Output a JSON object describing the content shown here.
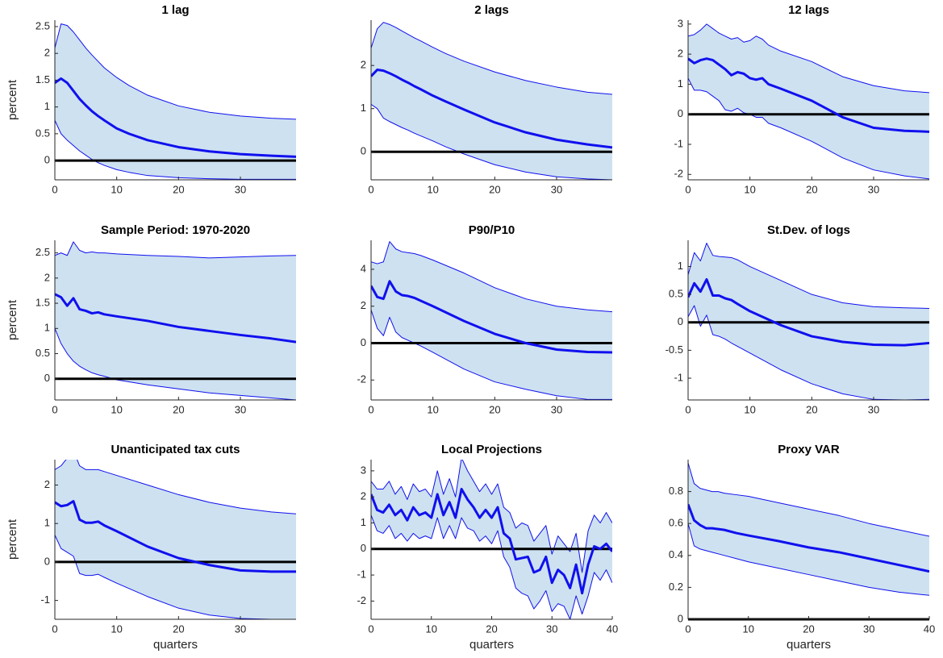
{
  "chart_data": [
    {
      "type": "line",
      "title": "1 lag",
      "ylabel": "percent",
      "x": [
        0,
        1,
        2,
        3,
        4,
        5,
        6,
        7,
        8,
        10,
        12,
        15,
        20,
        25,
        30,
        35,
        39
      ],
      "series": [
        {
          "color": "#1010ee",
          "values": [
            1.45,
            1.53,
            1.45,
            1.3,
            1.15,
            1.03,
            0.92,
            0.83,
            0.75,
            0.6,
            0.5,
            0.38,
            0.25,
            0.17,
            0.12,
            0.09,
            0.07
          ]
        }
      ],
      "band": {
        "color": "#cde1f1",
        "line_color": "#1010ee",
        "upper": [
          2.1,
          2.55,
          2.52,
          2.4,
          2.25,
          2.1,
          1.97,
          1.85,
          1.73,
          1.55,
          1.4,
          1.22,
          1.02,
          0.9,
          0.83,
          0.79,
          0.77
        ],
        "lower": [
          0.75,
          0.5,
          0.38,
          0.28,
          0.18,
          0.1,
          0.02,
          -0.04,
          -0.09,
          -0.17,
          -0.22,
          -0.28,
          -0.32,
          -0.34,
          -0.35,
          -0.35,
          -0.35
        ]
      },
      "hline": 0,
      "xlim": [
        0,
        39
      ],
      "xticks": [
        0,
        10,
        20,
        30
      ],
      "ylim": [
        -0.36,
        2.62
      ],
      "yticks": [
        0,
        0.5,
        1,
        1.5,
        2,
        2.5
      ]
    },
    {
      "type": "line",
      "title": "2 lags",
      "x": [
        0,
        1,
        2,
        3,
        4,
        5,
        6,
        7,
        8,
        10,
        12,
        15,
        20,
        25,
        30,
        35,
        39
      ],
      "series": [
        {
          "color": "#1010ee",
          "values": [
            1.75,
            1.9,
            1.88,
            1.82,
            1.75,
            1.67,
            1.6,
            1.52,
            1.45,
            1.3,
            1.17,
            0.98,
            0.68,
            0.45,
            0.28,
            0.17,
            0.1
          ]
        }
      ],
      "band": {
        "color": "#cde1f1",
        "line_color": "#1010ee",
        "upper": [
          2.4,
          2.85,
          3.0,
          2.95,
          2.88,
          2.8,
          2.72,
          2.64,
          2.57,
          2.42,
          2.28,
          2.1,
          1.85,
          1.65,
          1.5,
          1.38,
          1.33
        ],
        "lower": [
          1.1,
          1.0,
          0.78,
          0.7,
          0.63,
          0.56,
          0.5,
          0.43,
          0.37,
          0.25,
          0.12,
          -0.05,
          -0.3,
          -0.47,
          -0.58,
          -0.63,
          -0.65
        ]
      },
      "hline": 0,
      "xlim": [
        0,
        39
      ],
      "xticks": [
        0,
        10,
        20,
        30
      ],
      "ylim": [
        -0.65,
        3.05
      ],
      "yticks": [
        0,
        1,
        2
      ]
    },
    {
      "type": "line",
      "title": "12 lags",
      "x": [
        0,
        1,
        2,
        3,
        4,
        5,
        6,
        7,
        8,
        9,
        10,
        11,
        12,
        13,
        15,
        20,
        25,
        30,
        35,
        39
      ],
      "series": [
        {
          "color": "#1010ee",
          "values": [
            1.85,
            1.7,
            1.8,
            1.85,
            1.8,
            1.65,
            1.5,
            1.3,
            1.4,
            1.35,
            1.2,
            1.15,
            1.2,
            1.0,
            0.85,
            0.45,
            -0.1,
            -0.45,
            -0.55,
            -0.58
          ]
        }
      ],
      "band": {
        "color": "#cde1f1",
        "line_color": "#1010ee",
        "upper": [
          2.6,
          2.65,
          2.8,
          3.0,
          2.85,
          2.7,
          2.6,
          2.5,
          2.55,
          2.4,
          2.45,
          2.6,
          2.5,
          2.3,
          2.1,
          1.75,
          1.25,
          0.95,
          0.78,
          0.72
        ],
        "lower": [
          1.2,
          0.8,
          0.8,
          0.75,
          0.6,
          0.45,
          0.15,
          0.1,
          0.2,
          0.05,
          0.0,
          -0.1,
          -0.1,
          -0.3,
          -0.45,
          -0.9,
          -1.45,
          -1.85,
          -2.05,
          -2.15
        ]
      },
      "hline": 0,
      "xlim": [
        0,
        39
      ],
      "xticks": [
        0,
        10,
        20,
        30
      ],
      "ylim": [
        -2.18,
        3.13
      ],
      "yticks": [
        -2,
        -1,
        0,
        1,
        2,
        3
      ]
    },
    {
      "type": "line",
      "title": "Sample Period: 1970-2020",
      "ylabel": "percent",
      "x": [
        0,
        1,
        2,
        3,
        4,
        5,
        6,
        7,
        8,
        10,
        15,
        20,
        25,
        30,
        35,
        39
      ],
      "series": [
        {
          "color": "#1010ee",
          "values": [
            1.68,
            1.62,
            1.45,
            1.6,
            1.38,
            1.35,
            1.3,
            1.32,
            1.28,
            1.24,
            1.15,
            1.03,
            0.95,
            0.87,
            0.8,
            0.73
          ]
        }
      ],
      "band": {
        "color": "#cde1f1",
        "line_color": "#1010ee",
        "upper": [
          2.45,
          2.5,
          2.45,
          2.72,
          2.55,
          2.5,
          2.52,
          2.5,
          2.5,
          2.48,
          2.45,
          2.43,
          2.4,
          2.42,
          2.44,
          2.45
        ],
        "lower": [
          1.0,
          0.7,
          0.5,
          0.35,
          0.25,
          0.18,
          0.12,
          0.08,
          0.05,
          -0.02,
          -0.12,
          -0.2,
          -0.28,
          -0.33,
          -0.38,
          -0.42
        ]
      },
      "hline": 0,
      "xlim": [
        0,
        39
      ],
      "xticks": [
        0,
        10,
        20,
        30
      ],
      "ylim": [
        -0.42,
        2.75
      ],
      "yticks": [
        0,
        0.5,
        1,
        1.5,
        2,
        2.5
      ]
    },
    {
      "type": "line",
      "title": "P90/P10",
      "x": [
        0,
        1,
        2,
        3,
        4,
        5,
        6,
        7,
        8,
        10,
        15,
        20,
        25,
        30,
        35,
        39
      ],
      "series": [
        {
          "color": "#1010ee",
          "values": [
            3.1,
            2.5,
            2.4,
            3.35,
            2.8,
            2.6,
            2.55,
            2.45,
            2.3,
            2.0,
            1.2,
            0.5,
            0.0,
            -0.35,
            -0.48,
            -0.5
          ]
        }
      ],
      "band": {
        "color": "#cde1f1",
        "line_color": "#1010ee",
        "upper": [
          4.4,
          4.3,
          4.4,
          5.5,
          5.1,
          4.95,
          4.9,
          4.85,
          4.75,
          4.5,
          3.8,
          3.0,
          2.4,
          2.0,
          1.8,
          1.7
        ],
        "lower": [
          1.8,
          0.8,
          0.4,
          1.4,
          0.6,
          0.3,
          0.15,
          0.0,
          -0.15,
          -0.5,
          -1.4,
          -2.1,
          -2.5,
          -2.85,
          -3.05,
          -3.05
        ]
      },
      "hline": 0,
      "xlim": [
        0,
        39
      ],
      "xticks": [
        0,
        10,
        20,
        30
      ],
      "ylim": [
        -3.08,
        5.57
      ],
      "yticks": [
        -2,
        0,
        2,
        4
      ]
    },
    {
      "type": "line",
      "title": "St.Dev. of logs",
      "x": [
        0,
        1,
        2,
        3,
        4,
        5,
        6,
        7,
        8,
        10,
        15,
        20,
        25,
        30,
        35,
        39
      ],
      "series": [
        {
          "color": "#1010ee",
          "values": [
            0.45,
            0.7,
            0.55,
            0.77,
            0.48,
            0.48,
            0.43,
            0.4,
            0.33,
            0.2,
            -0.05,
            -0.25,
            -0.35,
            -0.4,
            -0.41,
            -0.37
          ]
        }
      ],
      "band": {
        "color": "#cde1f1",
        "line_color": "#1010ee",
        "upper": [
          0.85,
          1.25,
          1.1,
          1.42,
          1.2,
          1.18,
          1.17,
          1.16,
          1.12,
          1.0,
          0.75,
          0.5,
          0.35,
          0.28,
          0.26,
          0.25
        ],
        "lower": [
          0.1,
          0.3,
          -0.07,
          0.13,
          -0.22,
          -0.25,
          -0.3,
          -0.37,
          -0.43,
          -0.55,
          -0.85,
          -1.1,
          -1.28,
          -1.38,
          -1.39,
          -1.38
        ]
      },
      "hline": 0,
      "xlim": [
        0,
        39
      ],
      "xticks": [
        0,
        10,
        20,
        30
      ],
      "ylim": [
        -1.39,
        1.47
      ],
      "yticks": [
        -1,
        -0.5,
        0,
        0.5,
        1
      ]
    },
    {
      "type": "line",
      "title": "Unanticipated tax cuts",
      "ylabel": "percent",
      "xlabel": "quarters",
      "x": [
        0,
        1,
        2,
        3,
        4,
        5,
        6,
        7,
        8,
        10,
        15,
        20,
        25,
        30,
        35,
        39
      ],
      "series": [
        {
          "color": "#1010ee",
          "values": [
            1.55,
            1.45,
            1.48,
            1.58,
            1.1,
            1.02,
            1.02,
            1.05,
            0.95,
            0.8,
            0.4,
            0.1,
            -0.08,
            -0.22,
            -0.25,
            -0.25
          ]
        }
      ],
      "band": {
        "color": "#cde1f1",
        "line_color": "#1010ee",
        "upper": [
          2.4,
          2.5,
          2.7,
          2.9,
          2.5,
          2.4,
          2.4,
          2.4,
          2.35,
          2.25,
          2.0,
          1.75,
          1.55,
          1.4,
          1.3,
          1.25
        ],
        "lower": [
          0.7,
          0.35,
          0.25,
          0.15,
          -0.3,
          -0.35,
          -0.35,
          -0.32,
          -0.4,
          -0.55,
          -0.9,
          -1.2,
          -1.38,
          -1.47,
          -1.49,
          -1.49
        ]
      },
      "hline": 0,
      "xlim": [
        0,
        39
      ],
      "xticks": [
        0,
        10,
        20,
        30
      ],
      "ylim": [
        -1.49,
        2.66
      ],
      "yticks": [
        -1,
        0,
        1,
        2
      ]
    },
    {
      "type": "line",
      "title": "Local Projections",
      "xlabel": "quarters",
      "x": [
        0,
        1,
        2,
        3,
        4,
        5,
        6,
        7,
        8,
        9,
        10,
        11,
        12,
        13,
        14,
        15,
        16,
        17,
        18,
        19,
        20,
        21,
        22,
        23,
        24,
        25,
        26,
        27,
        28,
        29,
        30,
        31,
        32,
        33,
        34,
        35,
        36,
        37,
        38,
        39,
        40
      ],
      "series": [
        {
          "color": "#1010ee",
          "values": [
            2.1,
            1.5,
            1.4,
            1.7,
            1.3,
            1.5,
            1.1,
            1.6,
            1.3,
            1.4,
            1.2,
            2.1,
            1.3,
            1.8,
            1.2,
            2.3,
            1.9,
            1.6,
            1.2,
            1.5,
            1.2,
            1.6,
            0.6,
            0.4,
            -0.4,
            -0.35,
            -0.3,
            -0.9,
            -0.8,
            -0.3,
            -1.3,
            -0.8,
            -1.0,
            -1.5,
            -0.6,
            -1.7,
            -0.6,
            0.1,
            0.0,
            0.2,
            -0.1
          ]
        }
      ],
      "band": {
        "color": "#cde1f1",
        "line_color": "#1010ee",
        "upper": [
          2.6,
          2.3,
          2.3,
          2.6,
          2.1,
          2.4,
          1.9,
          2.5,
          2.2,
          2.3,
          2.0,
          3.0,
          2.1,
          2.7,
          2.0,
          3.5,
          3.0,
          2.6,
          2.2,
          2.5,
          2.1,
          2.5,
          1.6,
          1.4,
          0.8,
          1.0,
          0.9,
          0.3,
          0.6,
          0.9,
          -0.2,
          0.5,
          0.2,
          -0.1,
          0.6,
          -0.9,
          0.7,
          1.3,
          1.0,
          1.4,
          1.0
        ],
        "lower": [
          1.3,
          0.7,
          0.6,
          0.9,
          0.4,
          0.6,
          0.3,
          0.6,
          0.4,
          0.5,
          0.4,
          1.2,
          0.4,
          0.9,
          0.4,
          1.2,
          0.8,
          0.7,
          0.3,
          0.5,
          0.2,
          0.7,
          -0.3,
          -0.7,
          -1.5,
          -1.7,
          -1.8,
          -2.3,
          -2.0,
          -1.6,
          -2.4,
          -2.1,
          -2.2,
          -2.7,
          -1.8,
          -2.5,
          -1.8,
          -0.9,
          -1.2,
          -0.8,
          -1.3
        ]
      },
      "hline": 0,
      "xlim": [
        0,
        40
      ],
      "xticks": [
        0,
        10,
        20,
        30,
        40
      ],
      "ylim": [
        -2.7,
        3.43
      ],
      "yticks": [
        -2,
        -1,
        0,
        1,
        2,
        3
      ]
    },
    {
      "type": "line",
      "title": "Proxy VAR",
      "xlabel": "quarters",
      "x": [
        0,
        1,
        2,
        3,
        4,
        5,
        6,
        8,
        10,
        15,
        20,
        25,
        30,
        35,
        40
      ],
      "series": [
        {
          "color": "#1010ee",
          "values": [
            0.72,
            0.62,
            0.59,
            0.57,
            0.57,
            0.565,
            0.56,
            0.54,
            0.525,
            0.49,
            0.45,
            0.42,
            0.38,
            0.34,
            0.3
          ]
        }
      ],
      "band": {
        "color": "#cde1f1",
        "line_color": "#1010ee",
        "upper": [
          0.98,
          0.85,
          0.82,
          0.81,
          0.8,
          0.8,
          0.79,
          0.78,
          0.77,
          0.73,
          0.69,
          0.65,
          0.6,
          0.56,
          0.52
        ],
        "lower": [
          0.6,
          0.46,
          0.44,
          0.43,
          0.42,
          0.41,
          0.4,
          0.38,
          0.36,
          0.32,
          0.28,
          0.24,
          0.2,
          0.17,
          0.15
        ]
      },
      "hline": 0,
      "xlim": [
        0,
        40
      ],
      "xticks": [
        0,
        10,
        20,
        30,
        40
      ],
      "ylim": [
        0,
        1.0
      ],
      "yticks": [
        0,
        0.2,
        0.4,
        0.6,
        0.8
      ]
    }
  ]
}
